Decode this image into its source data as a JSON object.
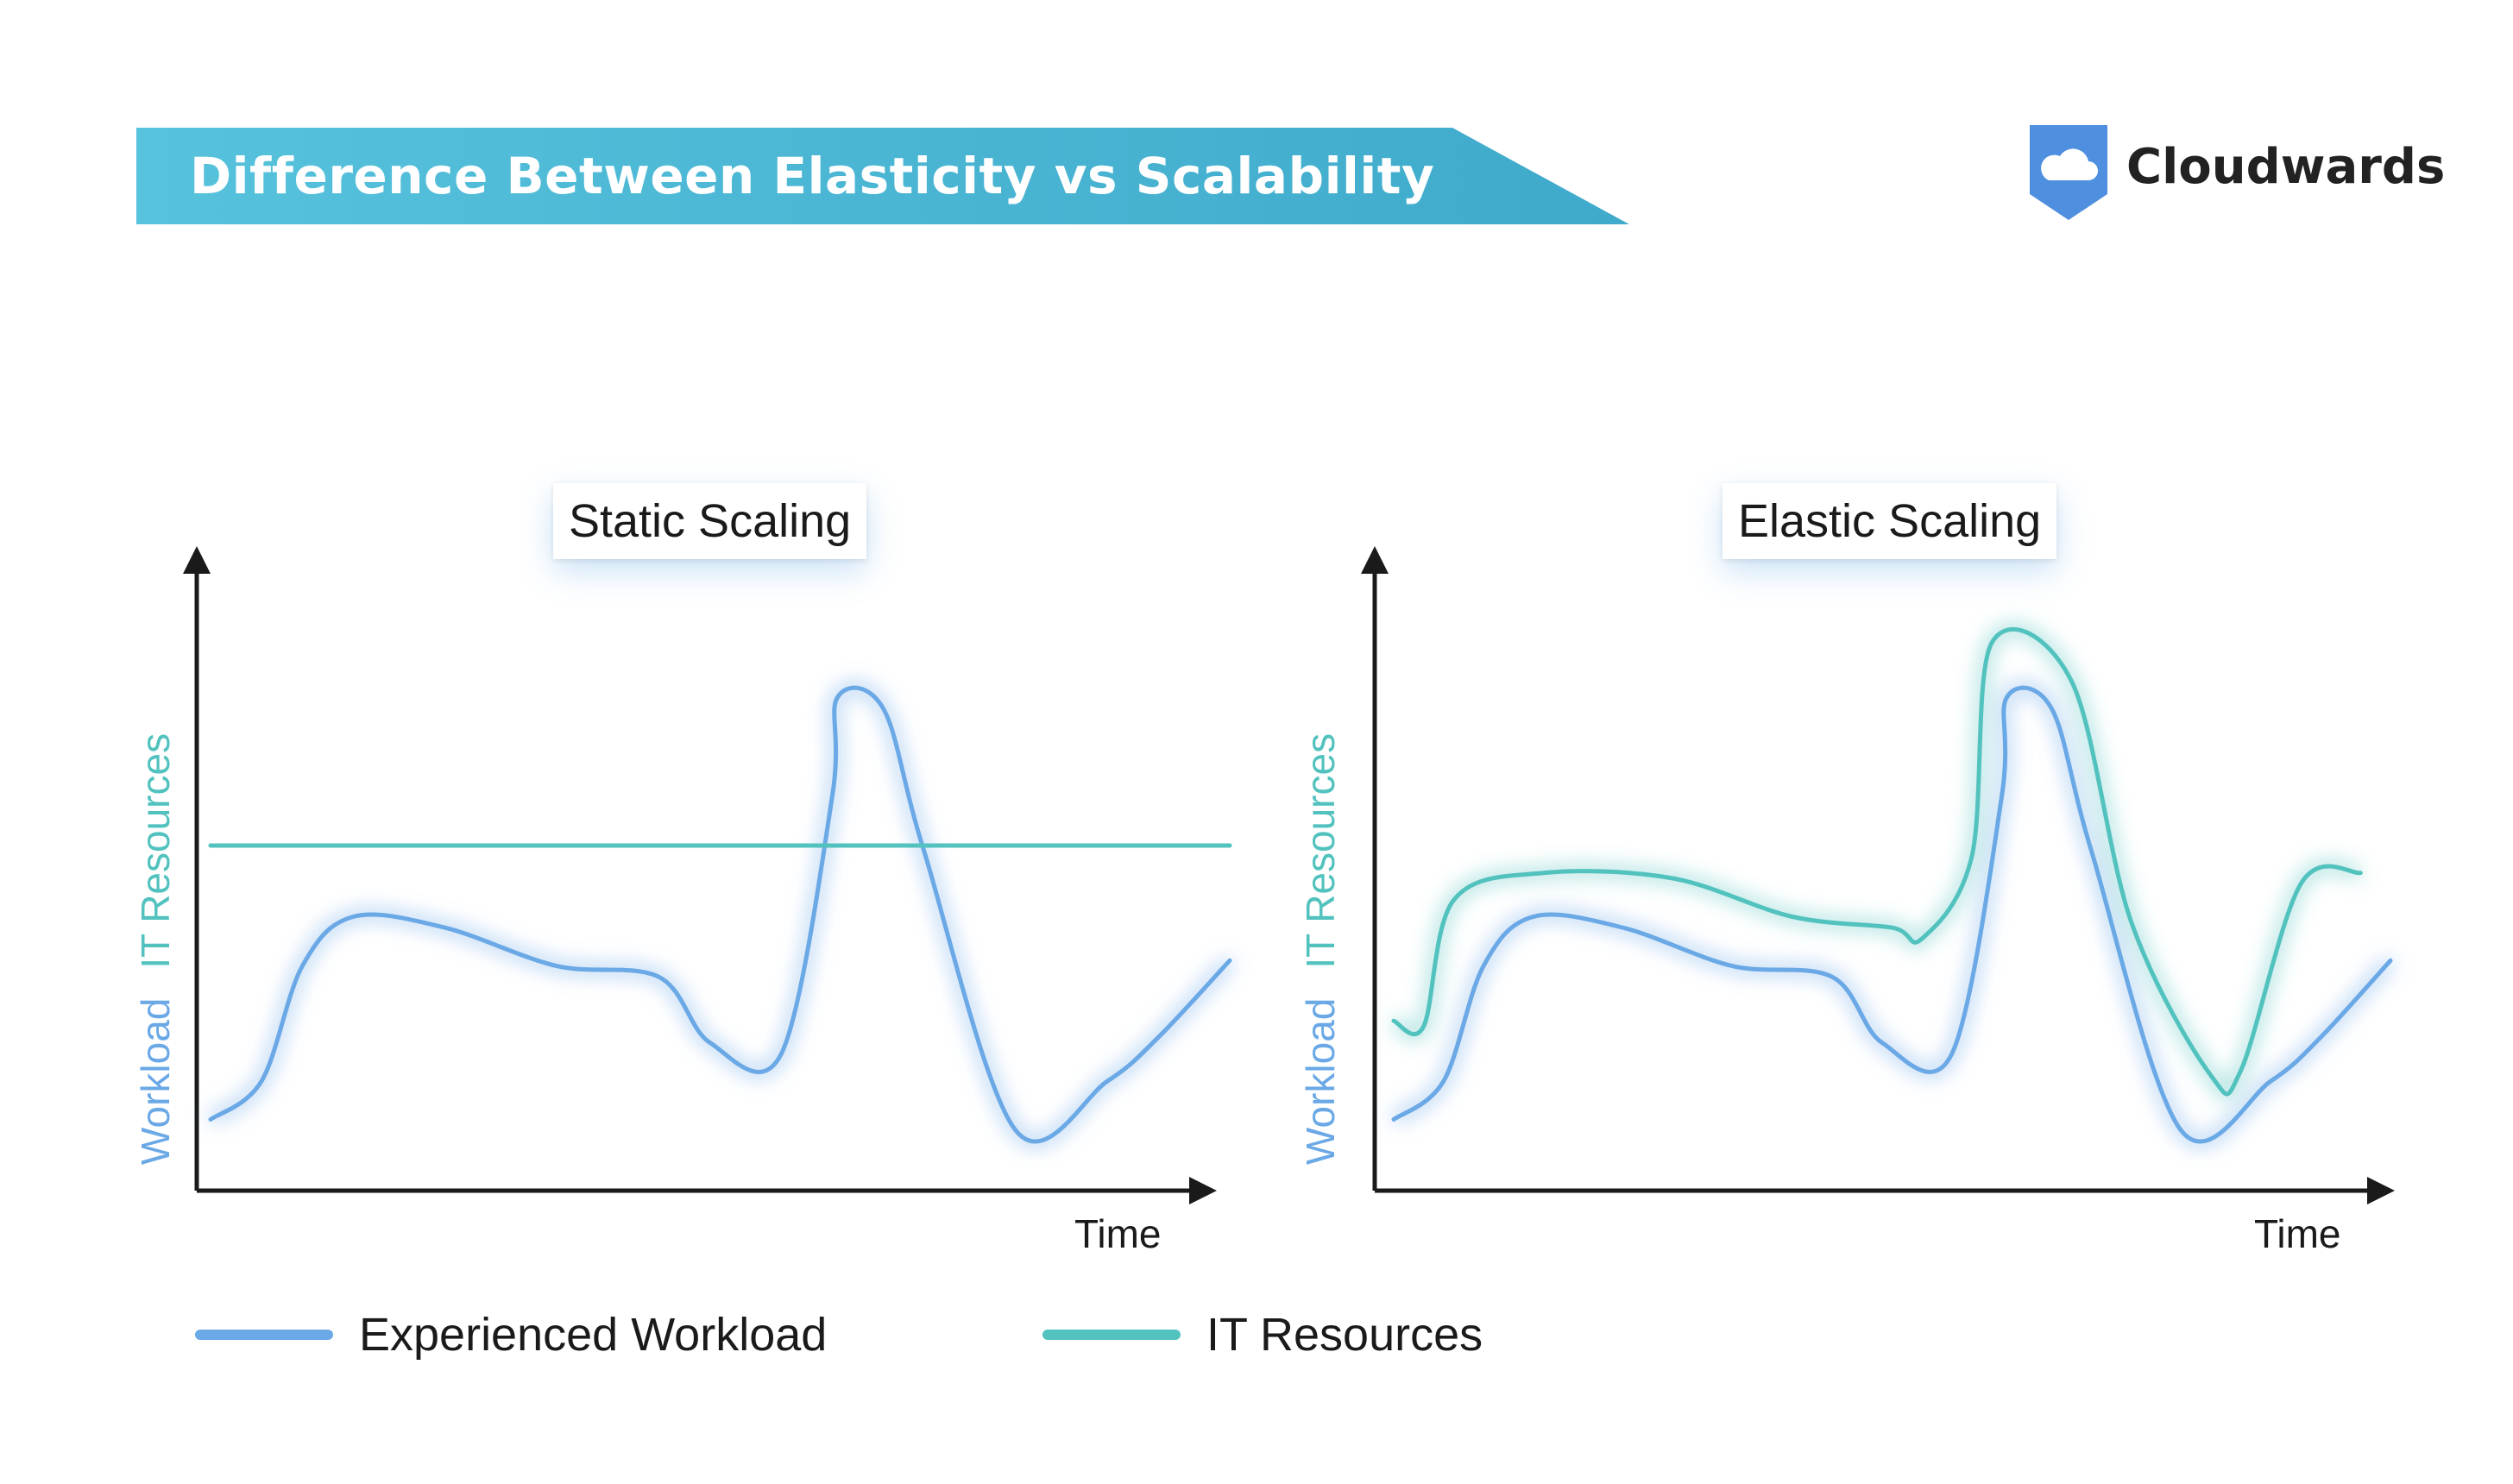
{
  "header": {
    "title": "Difference Between Elasticity vs Scalability"
  },
  "brand": {
    "name": "Cloudwards",
    "icon": "cloud-shield-icon"
  },
  "colors": {
    "workload": "#6aa8e6",
    "resources": "#52c2be",
    "banner": "#4bb6d6",
    "axis": "#1a1a1a"
  },
  "chart_data": [
    {
      "type": "line",
      "title": "Static Scaling",
      "xlabel": "Time",
      "ylabel_parts": [
        "Workload",
        "IT Resources"
      ],
      "grid": false,
      "series": [
        {
          "name": "Experienced Workload",
          "color": "#6aa8e6",
          "x": [
            0,
            0.05,
            0.09,
            0.14,
            0.23,
            0.34,
            0.44,
            0.49,
            0.56,
            0.61,
            0.615,
            0.66,
            0.7,
            0.79,
            0.88,
            0.93,
            1.0
          ],
          "values": [
            0.13,
            0.2,
            0.41,
            0.5,
            0.48,
            0.41,
            0.39,
            0.27,
            0.25,
            0.72,
            0.9,
            0.88,
            0.62,
            0.11,
            0.2,
            0.28,
            0.42
          ]
        },
        {
          "name": "IT Resources",
          "color": "#52c2be",
          "x": [
            0,
            1.0
          ],
          "values": [
            0.63,
            0.63
          ]
        }
      ]
    },
    {
      "type": "line",
      "title": "Elastic Scaling",
      "xlabel": "Time",
      "ylabel_parts": [
        "Workload",
        "IT Resources"
      ],
      "grid": false,
      "series": [
        {
          "name": "Experienced Workload",
          "color": "#6aa8e6",
          "x": [
            0,
            0.05,
            0.09,
            0.14,
            0.23,
            0.34,
            0.44,
            0.49,
            0.56,
            0.61,
            0.615,
            0.66,
            0.7,
            0.79,
            0.88,
            0.93,
            1.0
          ],
          "values": [
            0.13,
            0.2,
            0.41,
            0.5,
            0.48,
            0.41,
            0.39,
            0.27,
            0.25,
            0.72,
            0.9,
            0.88,
            0.62,
            0.11,
            0.2,
            0.28,
            0.42
          ]
        },
        {
          "name": "IT Resources",
          "color": "#52c2be",
          "x": [
            0,
            0.03,
            0.06,
            0.15,
            0.28,
            0.4,
            0.5,
            0.53,
            0.58,
            0.6,
            0.68,
            0.74,
            0.82,
            0.85,
            0.91,
            0.97
          ],
          "values": [
            0.31,
            0.3,
            0.53,
            0.58,
            0.57,
            0.5,
            0.48,
            0.46,
            0.61,
            1.0,
            0.93,
            0.49,
            0.21,
            0.22,
            0.56,
            0.58
          ]
        }
      ]
    }
  ],
  "legend": [
    {
      "label": "Experienced Workload",
      "color": "#6aa8e6"
    },
    {
      "label": "IT Resources",
      "color": "#52c2be"
    }
  ]
}
